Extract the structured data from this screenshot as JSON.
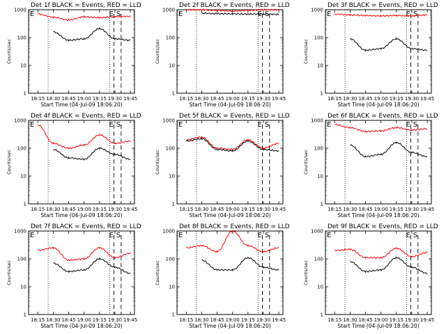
{
  "figure": {
    "xlabel": "Start Time (04-Jul-09 18:06:20)",
    "ylabel": "Counts/sec",
    "x_ticks": [
      "18:15",
      "18:30",
      "18:45",
      "19:00",
      "19:15",
      "19:30",
      "19:45"
    ],
    "y_ticks": [
      "1",
      "10",
      "100",
      "1000"
    ],
    "markers": [
      "E",
      "S"
    ]
  },
  "colors": {
    "events": "#000000",
    "lld": "#ff0000"
  },
  "chart_data": [
    {
      "type": "line",
      "title": "Det 1f BLACK = Events, RED = LLD",
      "xlabel": "Start Time (04-Jul-09 18:06:20)",
      "ylabel": "Counts/sec",
      "yscale": "log",
      "ylim": [
        1,
        1000
      ],
      "x": [
        "18:15",
        "18:30",
        "18:45",
        "19:00",
        "19:15",
        "19:30",
        "19:45"
      ],
      "series": [
        {
          "name": "LLD",
          "color": "#ff0000",
          "values": [
            700,
            540,
            430,
            560,
            520,
            560,
            580
          ]
        },
        {
          "name": "Events",
          "color": "#000000",
          "values": [
            null,
            160,
            80,
            90,
            210,
            90,
            80
          ]
        }
      ],
      "markers": [
        {
          "label": "E",
          "x": "19:29"
        },
        {
          "label": "S",
          "x": "19:36"
        }
      ]
    },
    {
      "type": "line",
      "title": "Det 2f BLACK = Events, RED = LLD",
      "xlabel": "Start Time (04-Jul-09 18:06:20)",
      "ylabel": "Counts/sec",
      "yscale": "log",
      "ylim": [
        1,
        1000
      ],
      "x": [
        "18:15",
        "18:30",
        "18:45",
        "19:00",
        "19:15",
        "19:30",
        "19:45"
      ],
      "series": [
        {
          "name": "LLD",
          "color": "#ff0000",
          "values": [
            1000,
            1000,
            950,
            900,
            950,
            1000,
            1000
          ]
        },
        {
          "name": "Events",
          "color": "#000000",
          "values": [
            null,
            750,
            720,
            710,
            700,
            700,
            680
          ]
        }
      ],
      "markers": [
        {
          "label": "E",
          "x": "19:29"
        },
        {
          "label": "S",
          "x": "19:36"
        }
      ]
    },
    {
      "type": "line",
      "title": "Det 3f BLACK = Events, RED = LLD",
      "xlabel": "Start Time (04-Jul-09 18:06:20)",
      "ylabel": "Counts/sec",
      "yscale": "log",
      "ylim": [
        1,
        1000
      ],
      "x": [
        "18:15",
        "18:30",
        "18:45",
        "19:00",
        "19:15",
        "19:30",
        "19:45"
      ],
      "series": [
        {
          "name": "LLD",
          "color": "#ff0000",
          "values": [
            700,
            650,
            620,
            600,
            620,
            600,
            650
          ]
        },
        {
          "name": "Events",
          "color": "#000000",
          "values": [
            null,
            90,
            35,
            40,
            90,
            40,
            35
          ]
        }
      ],
      "markers": [
        {
          "label": "E",
          "x": "19:29"
        },
        {
          "label": "S",
          "x": "19:36"
        }
      ]
    },
    {
      "type": "line",
      "title": "Det 4f BLACK = Events, RED = LLD",
      "xlabel": "Start Time (04-Jul-09 18:06:20)",
      "ylabel": "Counts/sec",
      "yscale": "log",
      "ylim": [
        1,
        1000
      ],
      "x": [
        "18:15",
        "18:30",
        "18:45",
        "19:00",
        "19:15",
        "19:30",
        "19:45"
      ],
      "series": [
        {
          "name": "LLD",
          "color": "#ff0000",
          "values": [
            700,
            150,
            100,
            130,
            300,
            150,
            180
          ]
        },
        {
          "name": "Events",
          "color": "#000000",
          "values": [
            null,
            90,
            45,
            40,
            100,
            60,
            40
          ]
        }
      ],
      "markers": [
        {
          "label": "E",
          "x": "19:29"
        },
        {
          "label": "S",
          "x": "19:36"
        }
      ]
    },
    {
      "type": "line",
      "title": "Det 5f BLACK = Events, RED = LLD",
      "xlabel": "Start Time (04-Jul-09 18:06:20)",
      "ylabel": "Counts/sec",
      "yscale": "log",
      "ylim": [
        1,
        1000
      ],
      "x": [
        "18:15",
        "18:30",
        "18:45",
        "19:00",
        "19:15",
        "19:30",
        "19:45"
      ],
      "series": [
        {
          "name": "LLD",
          "color": "#ff0000",
          "values": [
            200,
            250,
            100,
            90,
            200,
            100,
            150
          ]
        },
        {
          "name": "Events",
          "color": "#000000",
          "values": [
            180,
            220,
            90,
            80,
            180,
            90,
            80
          ]
        }
      ],
      "markers": [
        {
          "label": "E",
          "x": "19:29"
        },
        {
          "label": "S",
          "x": "19:36"
        }
      ]
    },
    {
      "type": "line",
      "title": "Det 6f BLACK = Events, RED = LLD",
      "xlabel": "Start Time (04-Jul-09 18:06:20)",
      "ylabel": "Counts/sec",
      "yscale": "log",
      "ylim": [
        1,
        1000
      ],
      "x": [
        "18:15",
        "18:30",
        "18:45",
        "19:00",
        "19:15",
        "19:30",
        "19:45"
      ],
      "series": [
        {
          "name": "LLD",
          "color": "#ff0000",
          "values": [
            700,
            550,
            400,
            420,
            550,
            450,
            500
          ]
        },
        {
          "name": "Events",
          "color": "#000000",
          "values": [
            null,
            130,
            50,
            60,
            160,
            70,
            50
          ]
        }
      ],
      "markers": [
        {
          "label": "E",
          "x": "19:29"
        },
        {
          "label": "S",
          "x": "19:36"
        }
      ]
    },
    {
      "type": "line",
      "title": "Det 7f BLACK = Events, RED = LLD",
      "xlabel": "Start Time (04-Jul-09 18:06:20)",
      "ylabel": "Counts/sec",
      "yscale": "log",
      "ylim": [
        1,
        1000
      ],
      "x": [
        "18:15",
        "18:30",
        "18:45",
        "19:00",
        "19:15",
        "19:30",
        "19:45"
      ],
      "series": [
        {
          "name": "LLD",
          "color": "#ff0000",
          "values": [
            200,
            250,
            90,
            100,
            250,
            110,
            160
          ]
        },
        {
          "name": "Events",
          "color": "#000000",
          "values": [
            null,
            70,
            35,
            40,
            100,
            50,
            30
          ]
        }
      ],
      "markers": [
        {
          "label": "E",
          "x": "19:29"
        },
        {
          "label": "S",
          "x": "19:36"
        }
      ]
    },
    {
      "type": "line",
      "title": "Det 8f BLACK = Events, RED = LLD",
      "xlabel": "Start Time (04-Jul-09 18:06:20)",
      "ylabel": "Counts/sec",
      "yscale": "log",
      "ylim": [
        1,
        1000
      ],
      "x": [
        "18:15",
        "18:30",
        "18:45",
        "19:00",
        "19:15",
        "19:30",
        "19:45"
      ],
      "series": [
        {
          "name": "LLD",
          "color": "#ff0000",
          "values": [
            250,
            300,
            180,
            1000,
            300,
            180,
            250
          ]
        },
        {
          "name": "Events",
          "color": "#000000",
          "values": [
            null,
            90,
            40,
            40,
            110,
            50,
            40
          ]
        }
      ],
      "markers": [
        {
          "label": "E",
          "x": "19:29"
        },
        {
          "label": "S",
          "x": "19:36"
        }
      ]
    },
    {
      "type": "line",
      "title": "Det 9f BLACK = Events, RED = LLD",
      "xlabel": "Start Time (04-Jul-09 18:06:20)",
      "ylabel": "Counts/sec",
      "yscale": "log",
      "ylim": [
        1,
        1000
      ],
      "x": [
        "18:15",
        "18:30",
        "18:45",
        "19:00",
        "19:15",
        "19:30",
        "19:45"
      ],
      "series": [
        {
          "name": "LLD",
          "color": "#ff0000",
          "values": [
            200,
            220,
            110,
            110,
            240,
            120,
            170
          ]
        },
        {
          "name": "Events",
          "color": "#000000",
          "values": [
            null,
            80,
            35,
            40,
            110,
            50,
            30
          ]
        }
      ],
      "markers": [
        {
          "label": "E",
          "x": "19:29"
        },
        {
          "label": "S",
          "x": "19:36"
        }
      ]
    }
  ]
}
